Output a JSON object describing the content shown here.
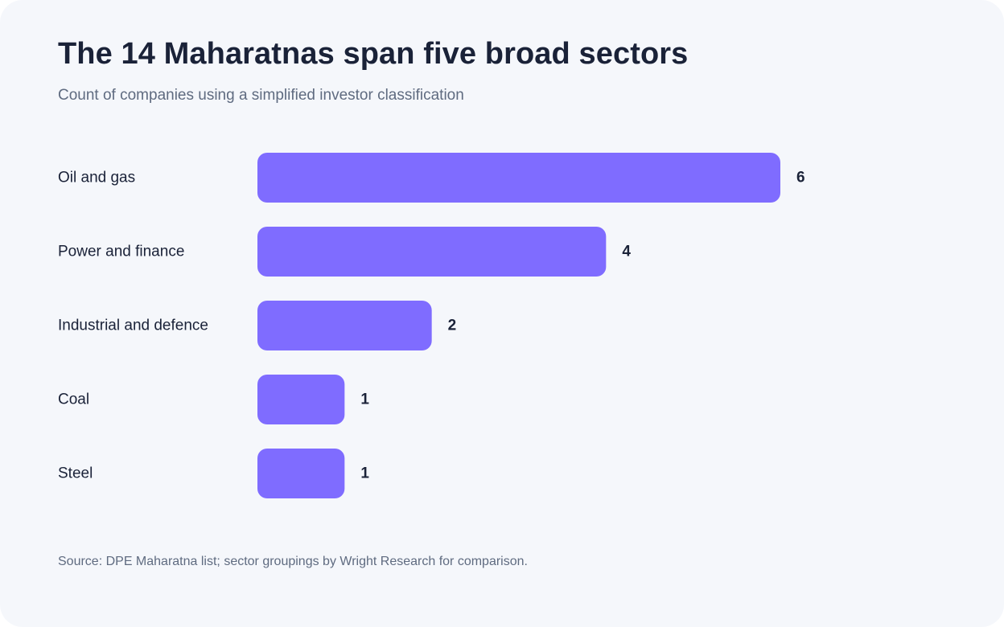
{
  "title": "The 14 Maharatnas span five broad sectors",
  "subtitle": "Count of companies using a simplified investor classification",
  "source": "Source: DPE Maharatna list; sector groupings by Wright Research for comparison.",
  "colors": {
    "bar": "#7f6cff",
    "background": "#f5f7fb",
    "text": "#1a2238",
    "muted": "#5f6b80"
  },
  "chart_data": {
    "type": "bar",
    "orientation": "horizontal",
    "categories": [
      "Oil and gas",
      "Power and finance",
      "Industrial and defence",
      "Coal",
      "Steel"
    ],
    "values": [
      6,
      4,
      2,
      1,
      1
    ],
    "value_labels": [
      "6",
      "4",
      "2",
      "1",
      "1"
    ],
    "xlim": [
      0,
      6
    ],
    "grid": false,
    "legend": "none"
  }
}
